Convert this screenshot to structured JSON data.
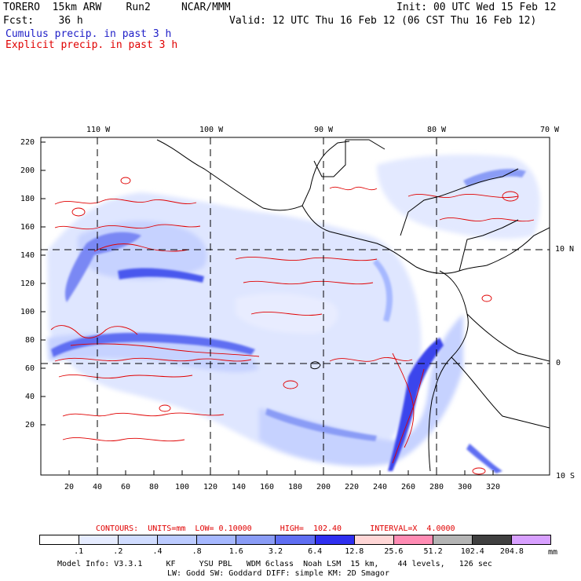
{
  "header": {
    "line1_left": "TORERO  15km ARW    Run2     NCAR/MMM",
    "line1_right": "Init: 00 UTC Wed 15 Feb 12",
    "line2_left": "Fcst:    36 h",
    "line2_right": "Valid: 12 UTC Thu 16 Feb 12 (06 CST Thu 16 Feb 12)",
    "line3": "Cumulus precip. in past 3 h",
    "line4": "Explicit precip. in past 3 h"
  },
  "lon_labels": [
    "110 W",
    "100 W",
    "90 W",
    "80 W",
    "70 W"
  ],
  "lat_labels": [
    "10 N",
    "0",
    "10 S"
  ],
  "y_ticks": [
    "220",
    "200",
    "180",
    "160",
    "140",
    "120",
    "100",
    "80",
    "60",
    "40",
    "20"
  ],
  "x_ticks": [
    "20",
    "40",
    "60",
    "80",
    "100",
    "120",
    "140",
    "160",
    "180",
    "200",
    "220",
    "240",
    "260",
    "280",
    "300",
    "320"
  ],
  "contours_line": "CONTOURS:  UNITS=mm  LOW= 0.10000      HIGH=  102.40      INTERVAL=X  4.0000",
  "legend": {
    "values": [
      ".1",
      ".2",
      ".4",
      ".8",
      "1.6",
      "3.2",
      "6.4",
      "12.8",
      "25.6",
      "51.2",
      "102.4",
      "204.8"
    ],
    "unit": "mm",
    "colors": [
      "#ffffff",
      "#e6ecff",
      "#d0dcff",
      "#bccbff",
      "#a6b8ff",
      "#8a9cf6",
      "#5f6ef2",
      "#2f2ff0",
      "#ffd6d6",
      "#ff8cb4",
      "#b4b4b4",
      "#404040",
      "#d8a0ff"
    ]
  },
  "footer": {
    "line1": "Model Info: V3.3.1     KF     YSU PBL   WDM 6class  Noah LSM  15 km,    44 levels,   126 sec",
    "line2": "LW: Godd SW: Goddard DIFF: simple KM: 2D Smagor"
  },
  "colors": {
    "cumulus": "#2020c8",
    "explicit": "#e00000",
    "grid": "#000000"
  }
}
